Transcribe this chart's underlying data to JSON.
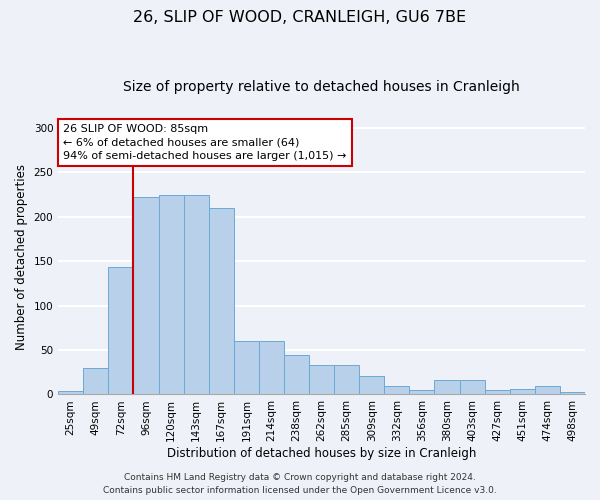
{
  "title": "26, SLIP OF WOOD, CRANLEIGH, GU6 7BE",
  "subtitle": "Size of property relative to detached houses in Cranleigh",
  "xlabel": "Distribution of detached houses by size in Cranleigh",
  "ylabel": "Number of detached properties",
  "categories": [
    "25sqm",
    "49sqm",
    "72sqm",
    "96sqm",
    "120sqm",
    "143sqm",
    "167sqm",
    "191sqm",
    "214sqm",
    "238sqm",
    "262sqm",
    "285sqm",
    "309sqm",
    "332sqm",
    "356sqm",
    "380sqm",
    "403sqm",
    "427sqm",
    "451sqm",
    "474sqm",
    "498sqm"
  ],
  "values": [
    4,
    30,
    143,
    222,
    224,
    224,
    210,
    60,
    60,
    44,
    33,
    33,
    21,
    10,
    5,
    16,
    16,
    5,
    6,
    9,
    3
  ],
  "bar_color": "#b8d0ea",
  "bar_edge_color": "#6aaad4",
  "vline_color": "#cc0000",
  "annotation_text": "26 SLIP OF WOOD: 85sqm\n← 6% of detached houses are smaller (64)\n94% of semi-detached houses are larger (1,015) →",
  "annotation_box_color": "#ffffff",
  "annotation_box_edge": "#cc0000",
  "footer_line1": "Contains HM Land Registry data © Crown copyright and database right 2024.",
  "footer_line2": "Contains public sector information licensed under the Open Government Licence v3.0.",
  "ylim": [
    0,
    310
  ],
  "yticks": [
    0,
    50,
    100,
    150,
    200,
    250,
    300
  ],
  "background_color": "#eef2f8",
  "grid_color": "#ffffff",
  "title_fontsize": 11.5,
  "subtitle_fontsize": 10,
  "axis_label_fontsize": 8.5,
  "tick_fontsize": 7.5,
  "annotation_fontsize": 8,
  "footer_fontsize": 6.5
}
